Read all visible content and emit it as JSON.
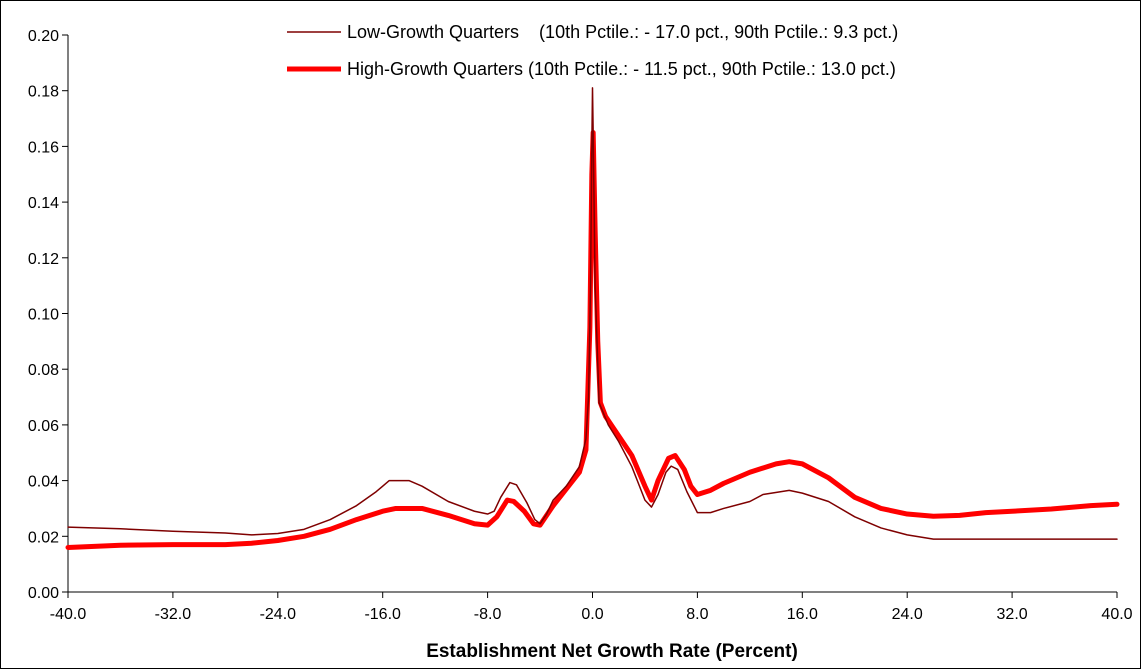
{
  "chart_data": {
    "type": "line",
    "title": "",
    "xlabel": "Establishment Net Growth Rate (Percent)",
    "ylabel": "",
    "xlim": [
      -40,
      40
    ],
    "ylim": [
      0,
      0.2
    ],
    "x_ticks": [
      "-40.0",
      "-32.0",
      "-24.0",
      "-16.0",
      "-8.0",
      "0.0",
      "8.0",
      "16.0",
      "24.0",
      "32.0",
      "40.0"
    ],
    "y_ticks": [
      "0.00",
      "0.02",
      "0.04",
      "0.06",
      "0.08",
      "0.10",
      "0.12",
      "0.14",
      "0.16",
      "0.18",
      "0.20"
    ],
    "grid": false,
    "legend_position": "top-right",
    "series": [
      {
        "name": "Low-Growth Quarters    (10th Pctile.: - 17.0 pct., 90th Pctile.: 9.3 pct.)",
        "color": "#7f0000",
        "line_width": 1.5,
        "points": [
          [
            -40,
            0.0233
          ],
          [
            -36,
            0.0227
          ],
          [
            -32,
            0.0218
          ],
          [
            -28,
            0.0212
          ],
          [
            -26,
            0.0205
          ],
          [
            -24,
            0.021
          ],
          [
            -22,
            0.0225
          ],
          [
            -20,
            0.026
          ],
          [
            -18,
            0.031
          ],
          [
            -16.5,
            0.036
          ],
          [
            -15.5,
            0.04
          ],
          [
            -14,
            0.04
          ],
          [
            -13,
            0.038
          ],
          [
            -11,
            0.0325
          ],
          [
            -9,
            0.029
          ],
          [
            -8,
            0.028
          ],
          [
            -7.5,
            0.029
          ],
          [
            -7,
            0.034
          ],
          [
            -6.3,
            0.0393
          ],
          [
            -5.8,
            0.0385
          ],
          [
            -5,
            0.032
          ],
          [
            -4.4,
            0.026
          ],
          [
            -4,
            0.0245
          ],
          [
            -3.5,
            0.028
          ],
          [
            -3,
            0.033
          ],
          [
            -2,
            0.038
          ],
          [
            -1,
            0.045
          ],
          [
            -0.5,
            0.055
          ],
          [
            -0.3,
            0.07
          ],
          [
            -0.15,
            0.11
          ],
          [
            -0.05,
            0.16
          ],
          [
            0,
            0.181
          ],
          [
            0.05,
            0.165
          ],
          [
            0.2,
            0.11
          ],
          [
            0.5,
            0.068
          ],
          [
            1.2,
            0.06
          ],
          [
            2,
            0.054
          ],
          [
            3,
            0.045
          ],
          [
            4,
            0.033
          ],
          [
            4.5,
            0.0305
          ],
          [
            5,
            0.035
          ],
          [
            5.6,
            0.043
          ],
          [
            6,
            0.0452
          ],
          [
            6.5,
            0.044
          ],
          [
            7.2,
            0.036
          ],
          [
            8,
            0.0285
          ],
          [
            9,
            0.0285
          ],
          [
            10,
            0.03
          ],
          [
            12,
            0.0325
          ],
          [
            13,
            0.035
          ],
          [
            15,
            0.0365
          ],
          [
            16,
            0.0355
          ],
          [
            18,
            0.0325
          ],
          [
            20,
            0.027
          ],
          [
            22,
            0.023
          ],
          [
            24,
            0.0205
          ],
          [
            26,
            0.019
          ],
          [
            28,
            0.019
          ],
          [
            32,
            0.019
          ],
          [
            36,
            0.019
          ],
          [
            40,
            0.019
          ]
        ]
      },
      {
        "name": "High-Growth Quarters (10th Pctile.: - 11.5 pct., 90th Pctile.: 13.0 pct.)",
        "color": "#ff0000",
        "line_width": 5,
        "points": [
          [
            -40,
            0.016
          ],
          [
            -36,
            0.0168
          ],
          [
            -32,
            0.017
          ],
          [
            -28,
            0.017
          ],
          [
            -26,
            0.0175
          ],
          [
            -24,
            0.0185
          ],
          [
            -22,
            0.02
          ],
          [
            -20,
            0.0225
          ],
          [
            -18,
            0.026
          ],
          [
            -16,
            0.029
          ],
          [
            -15,
            0.03
          ],
          [
            -13,
            0.03
          ],
          [
            -11,
            0.0275
          ],
          [
            -9,
            0.0245
          ],
          [
            -8,
            0.024
          ],
          [
            -7.3,
            0.027
          ],
          [
            -6.5,
            0.033
          ],
          [
            -6,
            0.0325
          ],
          [
            -5.2,
            0.029
          ],
          [
            -4.5,
            0.0245
          ],
          [
            -4,
            0.024
          ],
          [
            -3.5,
            0.0275
          ],
          [
            -3,
            0.031
          ],
          [
            -2,
            0.037
          ],
          [
            -1,
            0.043
          ],
          [
            -0.5,
            0.051
          ],
          [
            -0.2,
            0.095
          ],
          [
            -0.05,
            0.15
          ],
          [
            0.05,
            0.165
          ],
          [
            0.2,
            0.13
          ],
          [
            0.4,
            0.09
          ],
          [
            0.6,
            0.068
          ],
          [
            1,
            0.063
          ],
          [
            2,
            0.056
          ],
          [
            3,
            0.049
          ],
          [
            4,
            0.038
          ],
          [
            4.5,
            0.033
          ],
          [
            5,
            0.04
          ],
          [
            5.8,
            0.048
          ],
          [
            6.3,
            0.049
          ],
          [
            7,
            0.044
          ],
          [
            7.5,
            0.038
          ],
          [
            8,
            0.035
          ],
          [
            9,
            0.0365
          ],
          [
            10,
            0.039
          ],
          [
            12,
            0.043
          ],
          [
            14,
            0.046
          ],
          [
            15,
            0.0468
          ],
          [
            16,
            0.046
          ],
          [
            18,
            0.041
          ],
          [
            20,
            0.034
          ],
          [
            22,
            0.03
          ],
          [
            24,
            0.028
          ],
          [
            26,
            0.0272
          ],
          [
            28,
            0.0275
          ],
          [
            30,
            0.0285
          ],
          [
            32,
            0.029
          ],
          [
            35,
            0.0298
          ],
          [
            38,
            0.031
          ],
          [
            40,
            0.0315
          ]
        ]
      }
    ]
  }
}
